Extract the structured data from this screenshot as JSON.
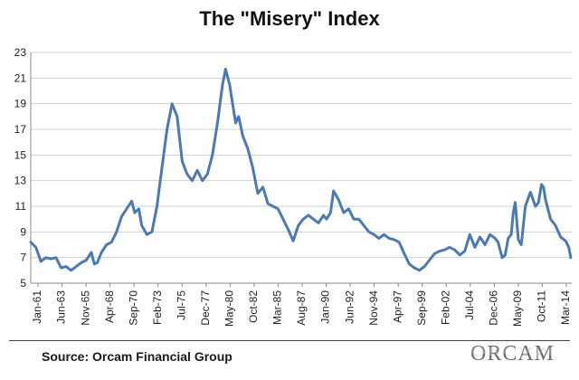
{
  "chart_data": {
    "type": "line",
    "title": "The \"Misery\" Index",
    "xlabel": "",
    "ylabel": "",
    "ylim": [
      5,
      23
    ],
    "yticks": [
      5,
      7,
      9,
      11,
      13,
      15,
      17,
      19,
      21,
      23
    ],
    "xtick_labels": [
      "Jan-61",
      "Jun-63",
      "Nov-65",
      "Apr-68",
      "Sep-70",
      "Feb-73",
      "Jul-75",
      "Dec-77",
      "May-80",
      "Oct-82",
      "Mar-85",
      "Aug-87",
      "Jan-90",
      "Jun-92",
      "Nov-94",
      "Apr-97",
      "Sep-99",
      "Feb-02",
      "Jul-04",
      "Dec-06",
      "May-09",
      "Oct-11",
      "Mar-14"
    ],
    "grid": "horizontal",
    "line_color": "#4a7ab5",
    "series": [
      {
        "x": [
          1961.0,
          1961.5,
          1962.0,
          1962.5,
          1963.0,
          1963.5,
          1964.0,
          1964.5,
          1965.0,
          1965.5,
          1966.0,
          1966.5,
          1967.0,
          1967.3,
          1967.6,
          1968.0,
          1968.5,
          1969.0,
          1969.5,
          1970.0,
          1970.5,
          1971.0,
          1971.3,
          1971.7,
          1972.0,
          1972.5,
          1973.0,
          1973.5,
          1974.0,
          1974.5,
          1975.0,
          1975.5,
          1976.0,
          1976.5,
          1977.0,
          1977.5,
          1978.0,
          1978.5,
          1979.0,
          1979.5,
          1980.0,
          1980.3,
          1980.7,
          1981.0,
          1981.3,
          1981.6,
          1982.0,
          1982.5,
          1983.0,
          1983.5,
          1984.0,
          1984.5,
          1985.0,
          1985.5,
          1986.0,
          1986.5,
          1987.0,
          1987.5,
          1988.0,
          1988.5,
          1989.0,
          1989.5,
          1990.0,
          1990.3,
          1990.7,
          1991.0,
          1991.5,
          1992.0,
          1992.5,
          1993.0,
          1993.5,
          1994.0,
          1994.5,
          1995.0,
          1995.5,
          1996.0,
          1996.5,
          1997.0,
          1997.5,
          1998.0,
          1998.5,
          1999.0,
          1999.5,
          2000.0,
          2000.5,
          2001.0,
          2001.5,
          2002.0,
          2002.5,
          2003.0,
          2003.5,
          2004.0,
          2004.5,
          2005.0,
          2005.5,
          2006.0,
          2006.5,
          2007.0,
          2007.3,
          2007.7,
          2008.0,
          2008.3,
          2008.6,
          2008.8,
          2009.0,
          2009.3,
          2009.6,
          2010.0,
          2010.5,
          2011.0,
          2011.3,
          2011.6,
          2011.8,
          2012.0,
          2012.5,
          2013.0,
          2013.5,
          2014.0,
          2014.3,
          2014.5
        ],
        "values": [
          8.2,
          7.8,
          6.7,
          7.0,
          6.9,
          7.0,
          6.2,
          6.3,
          6.0,
          6.3,
          6.6,
          6.8,
          7.4,
          6.5,
          6.6,
          7.4,
          8.0,
          8.2,
          9.0,
          10.2,
          10.8,
          11.4,
          10.5,
          10.8,
          9.5,
          8.8,
          9.0,
          11.0,
          14.0,
          17.0,
          19.0,
          18.0,
          14.5,
          13.5,
          13.0,
          13.8,
          13.0,
          13.5,
          15.0,
          17.5,
          20.5,
          21.7,
          20.5,
          19.0,
          17.5,
          18.0,
          16.5,
          15.5,
          14.0,
          12.0,
          12.5,
          11.2,
          11.0,
          10.8,
          10.0,
          9.2,
          8.3,
          9.5,
          10.0,
          10.3,
          10.0,
          9.7,
          10.3,
          10.0,
          10.5,
          12.2,
          11.5,
          10.5,
          10.8,
          10.0,
          10.0,
          9.5,
          9.0,
          8.8,
          8.5,
          8.8,
          8.5,
          8.4,
          8.2,
          7.3,
          6.5,
          6.2,
          6.0,
          6.3,
          6.8,
          7.3,
          7.5,
          7.6,
          7.8,
          7.6,
          7.2,
          7.5,
          8.8,
          7.8,
          8.6,
          8.0,
          8.8,
          8.5,
          8.2,
          7.0,
          7.2,
          8.5,
          8.8,
          10.5,
          11.3,
          8.4,
          8.0,
          11.0,
          12.1,
          11.0,
          11.3,
          12.7,
          12.5,
          11.5,
          10.0,
          9.5,
          8.6,
          8.3,
          7.8,
          7.0
        ]
      }
    ]
  },
  "footer": {
    "source": "Source: Orcam Financial Group",
    "logo_text": "ORCAM"
  }
}
